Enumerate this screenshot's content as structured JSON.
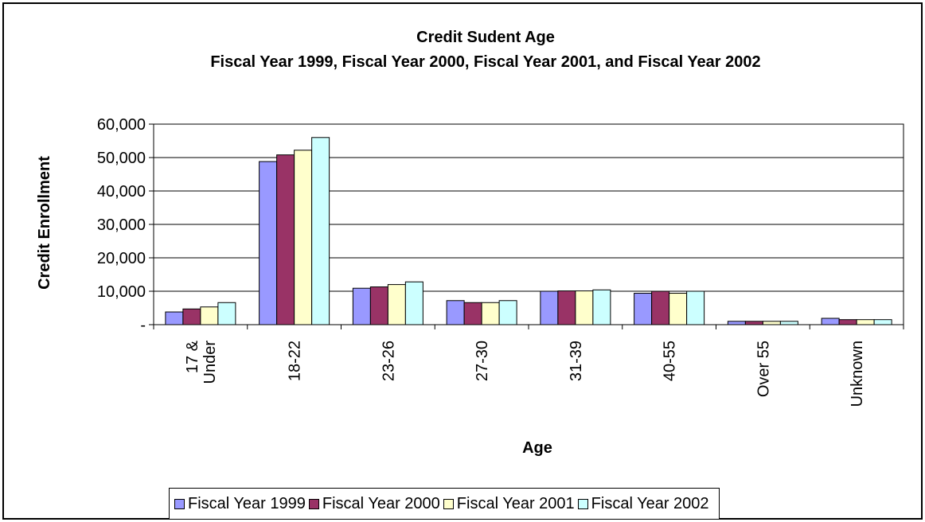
{
  "chart_data": {
    "type": "bar",
    "title": "Credit Sudent Age",
    "subtitle": "Fiscal Year 1999, Fiscal Year 2000, Fiscal Year 2001, and Fiscal Year 2002",
    "xlabel": "Age",
    "ylabel": "Credit Enrollment",
    "categories": [
      [
        "17 &",
        "Under"
      ],
      [
        "18-22"
      ],
      [
        "23-26"
      ],
      [
        "27-30"
      ],
      [
        "31-39"
      ],
      [
        "40-55"
      ],
      [
        "Over 55"
      ],
      [
        "Unknown"
      ]
    ],
    "ylim": [
      0,
      60000
    ],
    "yticks": [
      0,
      10000,
      20000,
      30000,
      40000,
      50000,
      60000
    ],
    "ytick_labels": [
      "-",
      "10,000",
      "20,000",
      "30,000",
      "40,000",
      "50,000",
      "60,000"
    ],
    "grid": true,
    "legend_position": "bottom",
    "series": [
      {
        "name": "Fiscal Year 1999",
        "color": "#9999ff",
        "values": [
          3800,
          48800,
          10900,
          7200,
          10000,
          9400,
          1000,
          1900
        ]
      },
      {
        "name": "Fiscal Year 2000",
        "color": "#993366",
        "values": [
          4700,
          50800,
          11300,
          6600,
          10100,
          10000,
          1000,
          1500
        ]
      },
      {
        "name": "Fiscal Year 2001",
        "color": "#ffffcc",
        "values": [
          5300,
          52200,
          12000,
          6600,
          10100,
          9400,
          1000,
          1500
        ]
      },
      {
        "name": "Fiscal Year 2002",
        "color": "#ccffff",
        "values": [
          6600,
          56000,
          12800,
          7200,
          10400,
          10000,
          1000,
          1500
        ]
      }
    ]
  }
}
